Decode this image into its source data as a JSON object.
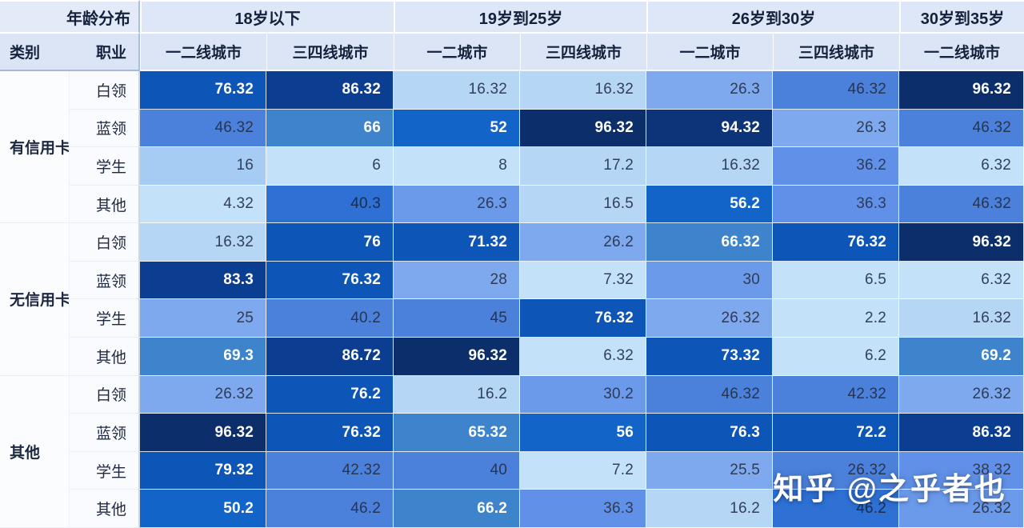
{
  "watermark": {
    "text": "知乎 @之乎者也"
  },
  "palette": {
    "l1": {
      "bg": "#c3e2f9",
      "fg": "#31405e"
    },
    "l2": {
      "bg": "#b5d6f5",
      "fg": "#31405e"
    },
    "l3": {
      "bg": "#a6ccf3",
      "fg": "#31405e"
    },
    "m1": {
      "bg": "#7fa9ee",
      "fg": "#2f3b55"
    },
    "m2": {
      "bg": "#6b9aeb",
      "fg": "#2f3b55"
    },
    "m3": {
      "bg": "#6090e7",
      "fg": "#2f3b55"
    },
    "m4": {
      "bg": "#4b80db",
      "fg": "#273550"
    },
    "b5": {
      "bg": "#2e70d4",
      "fg": "#1d2c49"
    },
    "b6": {
      "bg": "#1264c8",
      "fg": "#ffffff"
    },
    "s6": {
      "bg": "#3d84cc",
      "fg": "#ffffff"
    },
    "b7": {
      "bg": "#0d55b6",
      "fg": "#ffffff"
    },
    "d2": {
      "bg": "#0b3d90",
      "fg": "#ffffff"
    },
    "d1b": {
      "bg": "#0d3378",
      "fg": "#ffffff"
    },
    "d1": {
      "bg": "#0c2e6a",
      "fg": "#ffffff"
    }
  },
  "chart_data": {
    "type": "heatmap",
    "corner": {
      "age_header": "年龄分布",
      "category_header": "类别",
      "occupation_header": "职业"
    },
    "age_groups": [
      {
        "label": "18岁以下",
        "span": 2
      },
      {
        "label": "19岁到25岁",
        "span": 2
      },
      {
        "label": "26岁到30岁",
        "span": 2
      },
      {
        "label": "30岁到35岁",
        "span": 1
      }
    ],
    "city_columns": [
      "一二线城市",
      "三四线城市",
      "一二城市",
      "三四线城市",
      "一二城市",
      "三四线城市",
      "一二线城市"
    ],
    "value_range": [
      0,
      100
    ],
    "row_groups": [
      {
        "category": "有信用卡",
        "rows": [
          {
            "occupation": "白领",
            "cells": [
              {
                "v": "76.32",
                "level": "b7"
              },
              {
                "v": "86.32",
                "level": "d2"
              },
              {
                "v": "16.32",
                "level": "l2"
              },
              {
                "v": "16.32",
                "level": "l2"
              },
              {
                "v": "26.3",
                "level": "m1"
              },
              {
                "v": "46.32",
                "level": "m4"
              },
              {
                "v": "96.32",
                "level": "d1"
              }
            ]
          },
          {
            "occupation": "蓝领",
            "cells": [
              {
                "v": "46.32",
                "level": "m4"
              },
              {
                "v": "66",
                "level": "s6"
              },
              {
                "v": "52",
                "level": "b6"
              },
              {
                "v": "96.32",
                "level": "d1"
              },
              {
                "v": "94.32",
                "level": "d1b"
              },
              {
                "v": "26.3",
                "level": "m1"
              },
              {
                "v": "46.32",
                "level": "m4"
              }
            ]
          },
          {
            "occupation": "学生",
            "cells": [
              {
                "v": "16",
                "level": "l3"
              },
              {
                "v": "6",
                "level": "l1"
              },
              {
                "v": "8",
                "level": "l1"
              },
              {
                "v": "17.2",
                "level": "l2"
              },
              {
                "v": "16.32",
                "level": "l2"
              },
              {
                "v": "36.2",
                "level": "m3"
              },
              {
                "v": "6.32",
                "level": "l1"
              }
            ]
          },
          {
            "occupation": "其他",
            "cells": [
              {
                "v": "4.32",
                "level": "l1"
              },
              {
                "v": "40.3",
                "level": "b5"
              },
              {
                "v": "26.3",
                "level": "m2"
              },
              {
                "v": "16.5",
                "level": "l2"
              },
              {
                "v": "56.2",
                "level": "b6"
              },
              {
                "v": "36.3",
                "level": "m3"
              },
              {
                "v": "46.32",
                "level": "m4"
              }
            ]
          }
        ]
      },
      {
        "category": "无信用卡",
        "rows": [
          {
            "occupation": "白领",
            "cells": [
              {
                "v": "16.32",
                "level": "l2"
              },
              {
                "v": "76",
                "level": "b7"
              },
              {
                "v": "71.32",
                "level": "b7"
              },
              {
                "v": "26.2",
                "level": "m1"
              },
              {
                "v": "66.32",
                "level": "s6"
              },
              {
                "v": "76.32",
                "level": "b7"
              },
              {
                "v": "96.32",
                "level": "d1"
              }
            ]
          },
          {
            "occupation": "蓝领",
            "cells": [
              {
                "v": "83.3",
                "level": "d2"
              },
              {
                "v": "76.32",
                "level": "b7"
              },
              {
                "v": "28",
                "level": "m1"
              },
              {
                "v": "7.32",
                "level": "l1"
              },
              {
                "v": "30",
                "level": "m2"
              },
              {
                "v": "6.5",
                "level": "l1"
              },
              {
                "v": "6.32",
                "level": "l1"
              }
            ]
          },
          {
            "occupation": "学生",
            "cells": [
              {
                "v": "25",
                "level": "m1"
              },
              {
                "v": "40.2",
                "level": "m4"
              },
              {
                "v": "45",
                "level": "m4"
              },
              {
                "v": "76.32",
                "level": "b7"
              },
              {
                "v": "26.32",
                "level": "m1"
              },
              {
                "v": "2.2",
                "level": "l1"
              },
              {
                "v": "16.32",
                "level": "l2"
              }
            ]
          },
          {
            "occupation": "其他",
            "cells": [
              {
                "v": "69.3",
                "level": "s6"
              },
              {
                "v": "86.72",
                "level": "d2"
              },
              {
                "v": "96.32",
                "level": "d1"
              },
              {
                "v": "6.32",
                "level": "l1"
              },
              {
                "v": "73.32",
                "level": "b7"
              },
              {
                "v": "6.2",
                "level": "l1"
              },
              {
                "v": "69.2",
                "level": "s6"
              }
            ]
          }
        ]
      },
      {
        "category": "其他",
        "rows": [
          {
            "occupation": "白领",
            "cells": [
              {
                "v": "26.32",
                "level": "m1"
              },
              {
                "v": "76.2",
                "level": "b7"
              },
              {
                "v": "16.2",
                "level": "l2"
              },
              {
                "v": "30.2",
                "level": "m2"
              },
              {
                "v": "46.32",
                "level": "m4"
              },
              {
                "v": "42.32",
                "level": "m4"
              },
              {
                "v": "26.32",
                "level": "m1"
              }
            ]
          },
          {
            "occupation": "蓝领",
            "cells": [
              {
                "v": "96.32",
                "level": "d1"
              },
              {
                "v": "76.32",
                "level": "b7"
              },
              {
                "v": "65.32",
                "level": "s6"
              },
              {
                "v": "56",
                "level": "b6"
              },
              {
                "v": "76.3",
                "level": "b7"
              },
              {
                "v": "72.2",
                "level": "b7"
              },
              {
                "v": "86.32",
                "level": "d2"
              }
            ]
          },
          {
            "occupation": "学生",
            "cells": [
              {
                "v": "79.32",
                "level": "b7"
              },
              {
                "v": "42.32",
                "level": "m4"
              },
              {
                "v": "40",
                "level": "m4"
              },
              {
                "v": "7.2",
                "level": "l1"
              },
              {
                "v": "25.5",
                "level": "m1"
              },
              {
                "v": "26.32",
                "level": "m4"
              },
              {
                "v": "38.32",
                "level": "m3"
              }
            ]
          },
          {
            "occupation": "其他",
            "cells": [
              {
                "v": "50.2",
                "level": "b6"
              },
              {
                "v": "46.2",
                "level": "m4"
              },
              {
                "v": "66.2",
                "level": "s6"
              },
              {
                "v": "36.3",
                "level": "m3"
              },
              {
                "v": "16.2",
                "level": "l2"
              },
              {
                "v": "46.2",
                "level": "b5"
              },
              {
                "v": "26.32",
                "level": "m2"
              }
            ]
          }
        ]
      }
    ]
  }
}
